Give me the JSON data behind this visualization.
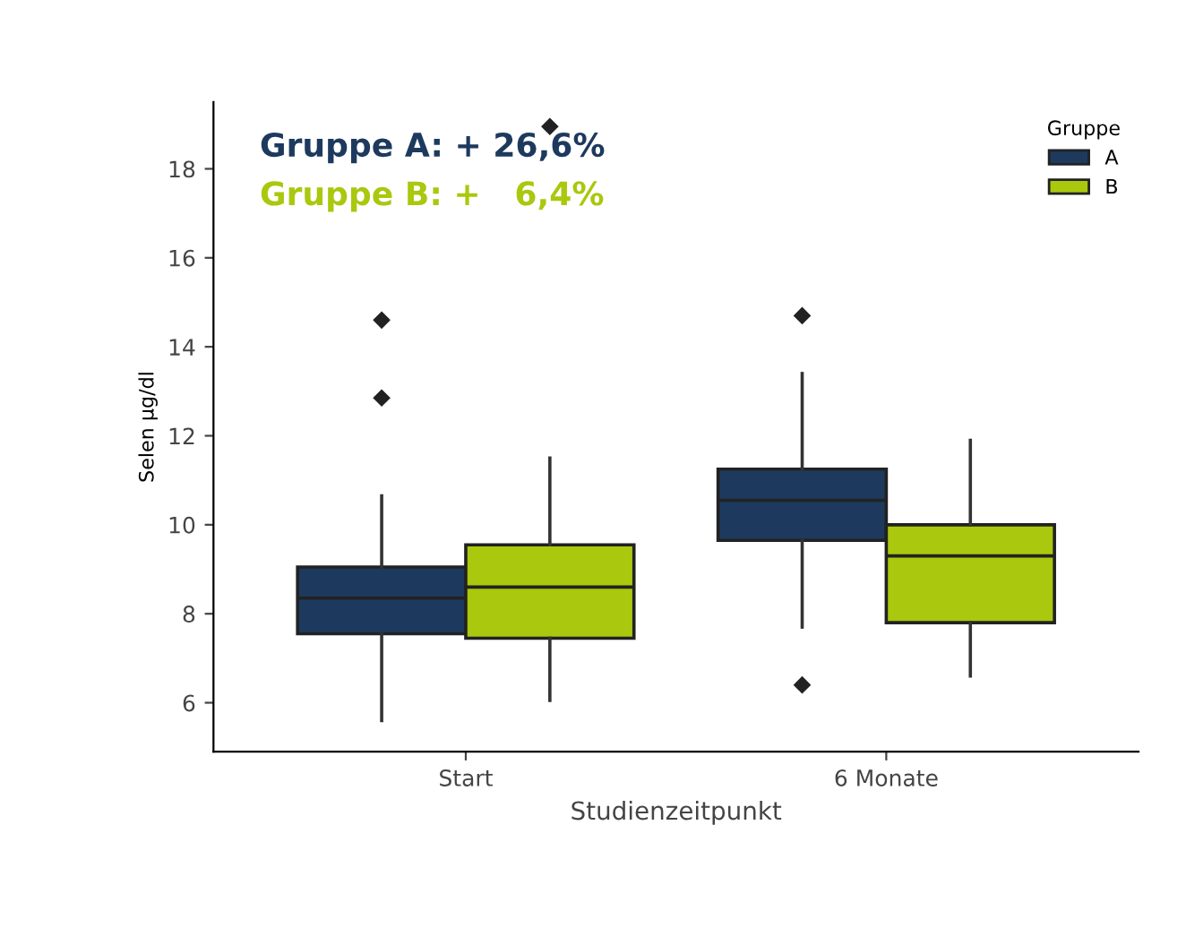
{
  "chart_data": {
    "type": "box",
    "xlabel": "Studienzeitpunkt",
    "ylabel": "Selen µg/dl",
    "legend_title": "Gruppe",
    "legend": "top right",
    "grid": false,
    "categories": [
      "Start",
      "6 Monate"
    ],
    "ylim": [
      4.9,
      19.5
    ],
    "yticks": [
      6,
      8,
      10,
      12,
      14,
      16,
      18
    ],
    "annotations": [
      "Gruppe A: + 26,6%",
      "Gruppe B: +   6,4%"
    ],
    "series": [
      {
        "name": "A",
        "color": "#1d3a5e",
        "boxes": [
          {
            "low": 5.6,
            "q1": 7.55,
            "median": 8.35,
            "q3": 9.05,
            "high": 10.65,
            "outliers": [
              12.85,
              14.6
            ]
          },
          {
            "low": 7.7,
            "q1": 9.65,
            "median": 10.55,
            "q3": 11.25,
            "high": 13.4,
            "outliers": [
              6.4,
              14.7
            ]
          }
        ]
      },
      {
        "name": "B",
        "color": "#a9c80e",
        "boxes": [
          {
            "low": 6.05,
            "q1": 7.45,
            "median": 8.6,
            "q3": 9.55,
            "high": 11.5,
            "outliers": [
              18.95
            ]
          },
          {
            "low": 6.6,
            "q1": 7.8,
            "median": 9.3,
            "q3": 10.0,
            "high": 11.9
          }
        ]
      }
    ]
  }
}
